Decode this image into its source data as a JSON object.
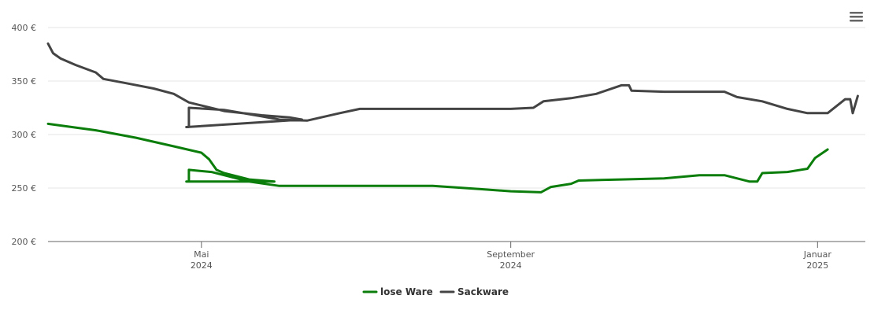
{
  "chart_data": {
    "type": "line",
    "title": "",
    "xlabel": "",
    "ylabel": "",
    "ylim": [
      200,
      400
    ],
    "y_ticks": [
      "200 €",
      "250 €",
      "300 €",
      "350 €",
      "400 €"
    ],
    "y_tick_values": [
      200,
      250,
      300,
      350,
      400
    ],
    "x_range": [
      "2024-03-01",
      "2025-01-20"
    ],
    "x_ticks": [
      {
        "date": "2024-05-01",
        "line1": "Mai",
        "line2": "2024"
      },
      {
        "date": "2024-09-01",
        "line1": "September",
        "line2": "2024"
      },
      {
        "date": "2025-01-01",
        "line1": "Januar",
        "line2": "2025"
      }
    ],
    "grid": true,
    "legend_position": "bottom-center",
    "series": [
      {
        "name": "lose Ware",
        "color": "#0a7d0a",
        "points": [
          [
            "2024-03-01",
            310
          ],
          [
            "2024-03-20",
            304
          ],
          [
            "2024-04-05",
            297
          ],
          [
            "2024-04-20",
            289
          ],
          [
            "2024-05-01",
            283
          ],
          [
            "2024-05-04",
            277
          ],
          [
            "2024-05-07",
            267
          ],
          [
            "2024-05-10",
            264
          ],
          [
            "2024-05-20",
            258
          ],
          [
            "2024-05-30",
            256
          ],
          [
            "2024-04-25",
            256
          ],
          [
            "2024-04-26",
            256
          ],
          [
            "2024-04-26",
            267
          ],
          [
            "2024-05-05",
            265
          ],
          [
            "2024-05-20",
            256
          ],
          [
            "2024-06-01",
            252
          ],
          [
            "2024-07-01",
            252
          ],
          [
            "2024-08-01",
            252
          ],
          [
            "2024-08-20",
            249
          ],
          [
            "2024-09-01",
            247
          ],
          [
            "2024-09-13",
            246
          ],
          [
            "2024-09-17",
            251
          ],
          [
            "2024-09-25",
            254
          ],
          [
            "2024-09-28",
            257
          ],
          [
            "2024-10-15",
            258
          ],
          [
            "2024-11-01",
            259
          ],
          [
            "2024-11-15",
            262
          ],
          [
            "2024-11-25",
            262
          ],
          [
            "2024-12-05",
            256
          ],
          [
            "2024-12-08",
            256
          ],
          [
            "2024-12-10",
            264
          ],
          [
            "2024-12-20",
            265
          ],
          [
            "2024-12-28",
            268
          ],
          [
            "2024-12-31",
            278
          ],
          [
            "2025-01-05",
            286
          ]
        ]
      },
      {
        "name": "Sackware",
        "color": "#444444",
        "points": [
          [
            "2024-03-01",
            385
          ],
          [
            "2024-03-03",
            376
          ],
          [
            "2024-03-06",
            371
          ],
          [
            "2024-03-12",
            365
          ],
          [
            "2024-03-20",
            358
          ],
          [
            "2024-03-23",
            352
          ],
          [
            "2024-04-01",
            348
          ],
          [
            "2024-04-12",
            343
          ],
          [
            "2024-04-20",
            338
          ],
          [
            "2024-04-26",
            330
          ],
          [
            "2024-05-10",
            322
          ],
          [
            "2024-05-25",
            318
          ],
          [
            "2024-06-05",
            316
          ],
          [
            "2024-06-10",
            314
          ],
          [
            "2024-04-25",
            307
          ],
          [
            "2024-04-26",
            307
          ],
          [
            "2024-04-26",
            325
          ],
          [
            "2024-05-10",
            323
          ],
          [
            "2024-05-25",
            317
          ],
          [
            "2024-06-01",
            314
          ],
          [
            "2024-06-12",
            313
          ],
          [
            "2024-06-25",
            320
          ],
          [
            "2024-07-03",
            324
          ],
          [
            "2024-08-01",
            324
          ],
          [
            "2024-09-01",
            324
          ],
          [
            "2024-09-10",
            325
          ],
          [
            "2024-09-14",
            331
          ],
          [
            "2024-09-25",
            334
          ],
          [
            "2024-10-05",
            338
          ],
          [
            "2024-10-15",
            346
          ],
          [
            "2024-10-18",
            346
          ],
          [
            "2024-10-19",
            341
          ],
          [
            "2024-11-01",
            340
          ],
          [
            "2024-11-25",
            340
          ],
          [
            "2024-11-30",
            335
          ],
          [
            "2024-12-10",
            331
          ],
          [
            "2024-12-20",
            324
          ],
          [
            "2024-12-28",
            320
          ],
          [
            "2025-01-05",
            320
          ],
          [
            "2025-01-12",
            333
          ],
          [
            "2025-01-14",
            333
          ],
          [
            "2025-01-15",
            320
          ],
          [
            "2025-01-17",
            336
          ]
        ]
      }
    ]
  },
  "toolbar": {
    "menu_icon": "hamburger-menu-icon"
  }
}
